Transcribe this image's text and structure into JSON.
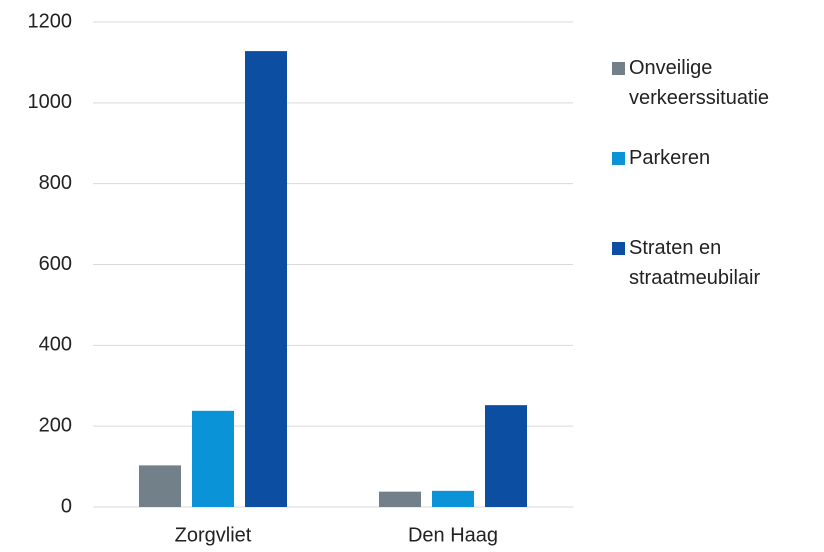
{
  "chart_data": {
    "type": "bar",
    "categories": [
      "Zorgvliet",
      "Den Haag"
    ],
    "series": [
      {
        "name": "Onveilige verkeerssituatie",
        "color": "#72808a",
        "values": [
          103,
          38
        ]
      },
      {
        "name": "Parkeren",
        "color": "#0b93d8",
        "values": [
          238,
          40
        ]
      },
      {
        "name": "Straten en straatmeubilair",
        "color": "#0c4ea2",
        "values": [
          1128,
          252
        ]
      }
    ],
    "ylim": [
      0,
      1200
    ],
    "yticks": [
      0,
      200,
      400,
      600,
      800,
      1000,
      1200
    ],
    "grid": true,
    "legend": "right"
  }
}
